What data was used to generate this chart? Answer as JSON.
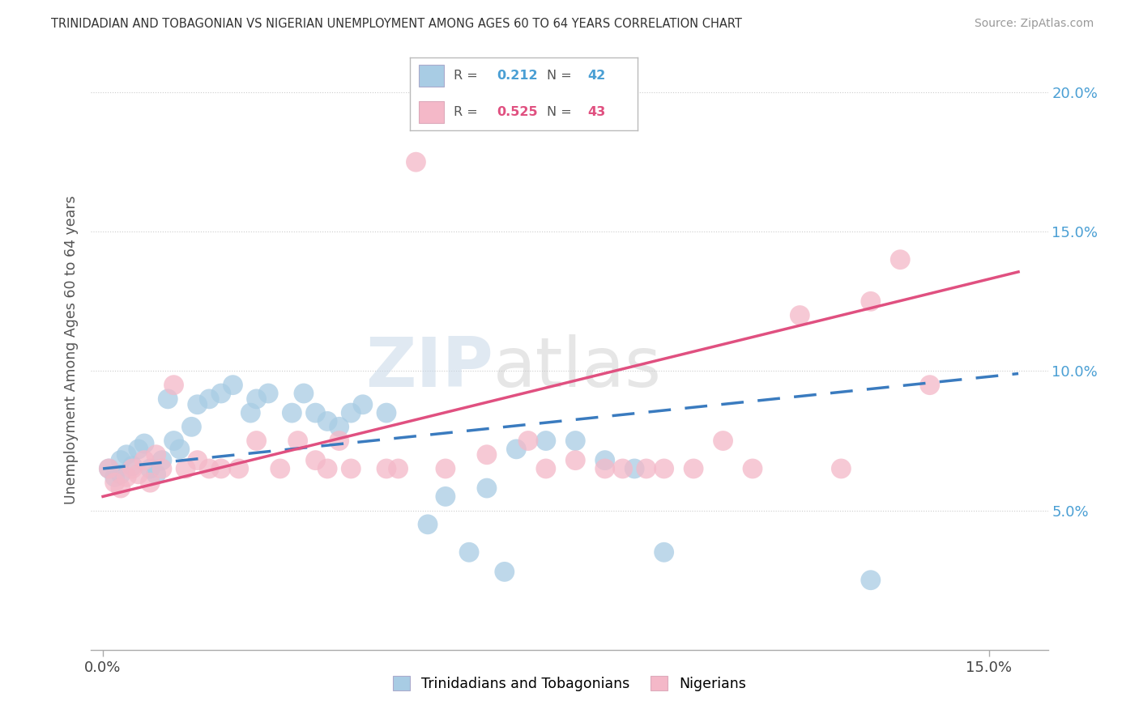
{
  "title": "TRINIDADIAN AND TOBAGONIAN VS NIGERIAN UNEMPLOYMENT AMONG AGES 60 TO 64 YEARS CORRELATION CHART",
  "source": "Source: ZipAtlas.com",
  "ylabel": "Unemployment Among Ages 60 to 64 years",
  "ylim": [
    0.0,
    0.215
  ],
  "xlim": [
    -0.002,
    0.16
  ],
  "ytick_positions": [
    0.05,
    0.1,
    0.15,
    0.2
  ],
  "ytick_labels": [
    "5.0%",
    "10.0%",
    "15.0%",
    "20.0%"
  ],
  "xtick_positions": [
    0.0,
    0.15
  ],
  "xtick_labels": [
    "0.0%",
    "15.0%"
  ],
  "blue_color": "#a8cce4",
  "pink_color": "#f4b8c8",
  "blue_line_color": "#3a7bbf",
  "pink_line_color": "#e05080",
  "watermark_zip": "ZIP",
  "watermark_atlas": "atlas",
  "legend_r1": "0.212",
  "legend_n1": "42",
  "legend_r2": "0.525",
  "legend_n2": "43",
  "blue_line_intercept": 0.065,
  "blue_line_slope": 0.22,
  "pink_line_intercept": 0.055,
  "pink_line_slope": 0.52,
  "trinidadian_x": [
    0.001,
    0.002,
    0.003,
    0.003,
    0.004,
    0.005,
    0.006,
    0.007,
    0.008,
    0.009,
    0.01,
    0.011,
    0.012,
    0.013,
    0.015,
    0.016,
    0.018,
    0.02,
    0.022,
    0.025,
    0.026,
    0.028,
    0.032,
    0.034,
    0.036,
    0.038,
    0.04,
    0.042,
    0.044,
    0.048,
    0.055,
    0.058,
    0.062,
    0.065,
    0.068,
    0.07,
    0.075,
    0.08,
    0.085,
    0.09,
    0.095,
    0.13
  ],
  "trinidadian_y": [
    0.065,
    0.062,
    0.063,
    0.068,
    0.07,
    0.066,
    0.072,
    0.074,
    0.065,
    0.063,
    0.068,
    0.09,
    0.075,
    0.072,
    0.08,
    0.088,
    0.09,
    0.092,
    0.095,
    0.085,
    0.09,
    0.092,
    0.085,
    0.092,
    0.085,
    0.082,
    0.08,
    0.085,
    0.088,
    0.085,
    0.045,
    0.055,
    0.035,
    0.058,
    0.028,
    0.072,
    0.075,
    0.075,
    0.068,
    0.065,
    0.035,
    0.025
  ],
  "nigerian_x": [
    0.001,
    0.002,
    0.003,
    0.004,
    0.005,
    0.006,
    0.007,
    0.008,
    0.009,
    0.01,
    0.012,
    0.014,
    0.016,
    0.018,
    0.02,
    0.023,
    0.026,
    0.03,
    0.033,
    0.036,
    0.038,
    0.04,
    0.042,
    0.048,
    0.05,
    0.053,
    0.058,
    0.065,
    0.072,
    0.075,
    0.08,
    0.085,
    0.088,
    0.092,
    0.095,
    0.1,
    0.105,
    0.11,
    0.118,
    0.125,
    0.13,
    0.135,
    0.14
  ],
  "nigerian_y": [
    0.065,
    0.06,
    0.058,
    0.062,
    0.065,
    0.063,
    0.068,
    0.06,
    0.07,
    0.065,
    0.095,
    0.065,
    0.068,
    0.065,
    0.065,
    0.065,
    0.075,
    0.065,
    0.075,
    0.068,
    0.065,
    0.075,
    0.065,
    0.065,
    0.065,
    0.175,
    0.065,
    0.07,
    0.075,
    0.065,
    0.068,
    0.065,
    0.065,
    0.065,
    0.065,
    0.065,
    0.075,
    0.065,
    0.12,
    0.065,
    0.125,
    0.14,
    0.095
  ]
}
